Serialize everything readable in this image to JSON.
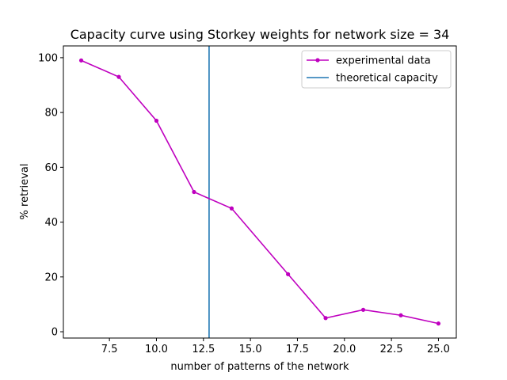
{
  "chart_data": {
    "type": "line",
    "title": "Capacity curve using Storkey weights for network size = 34",
    "xlabel": "number of patterns of the network",
    "ylabel": "% retrieval",
    "xlim": [
      5.05,
      25.95
    ],
    "ylim": [
      -2.3,
      104.3
    ],
    "xticks": [
      7.5,
      10.0,
      12.5,
      15.0,
      17.5,
      20.0,
      22.5,
      25.0
    ],
    "xtick_labels": [
      "7.5",
      "10.0",
      "12.5",
      "15.0",
      "17.5",
      "20.0",
      "22.5",
      "25.0"
    ],
    "yticks": [
      0,
      20,
      40,
      60,
      80,
      100
    ],
    "ytick_labels": [
      "0",
      "20",
      "40",
      "60",
      "80",
      "100"
    ],
    "series": [
      {
        "name": "experimental data",
        "color": "#bf00bf",
        "marker": "point",
        "x": [
          6,
          8,
          10,
          12,
          14,
          17,
          19,
          21,
          23,
          25
        ],
        "y": [
          99,
          93,
          77,
          51,
          45,
          21,
          5,
          8,
          6,
          3
        ]
      }
    ],
    "vlines": [
      {
        "name": "theoretical capacity",
        "color": "#1f77b4",
        "x": 12.8
      }
    ],
    "legend": "top-right",
    "grid": false
  }
}
